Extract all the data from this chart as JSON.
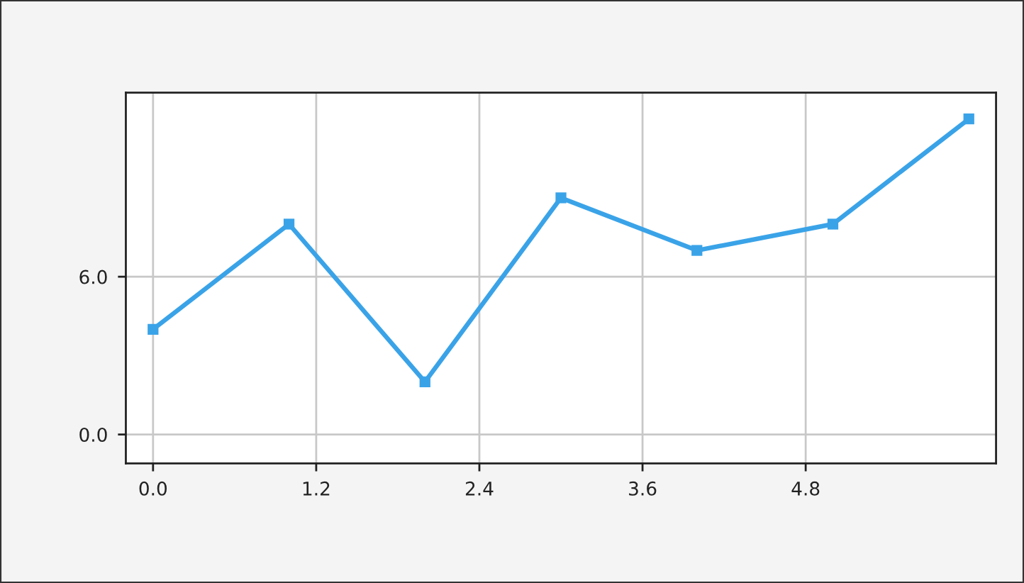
{
  "chart_data": {
    "type": "line",
    "x": [
      0,
      1,
      2,
      3,
      4,
      5,
      6
    ],
    "series": [
      {
        "color": "#3aa3e8",
        "values": [
          4,
          8,
          2,
          9,
          7,
          8,
          12
        ]
      }
    ],
    "xlim": [
      -0.2,
      6.2
    ],
    "ylim": [
      -1.1,
      13
    ],
    "xticks": [
      {
        "value": 0,
        "label": "0.0"
      },
      1.2,
      2.4,
      3.6,
      4.8
    ],
    "yticks": [
      {
        "value": 0,
        "label": "0.0"
      },
      {
        "value": 6,
        "label": "6.0"
      }
    ],
    "grid": true,
    "marker": "square",
    "line_style": "solid"
  }
}
